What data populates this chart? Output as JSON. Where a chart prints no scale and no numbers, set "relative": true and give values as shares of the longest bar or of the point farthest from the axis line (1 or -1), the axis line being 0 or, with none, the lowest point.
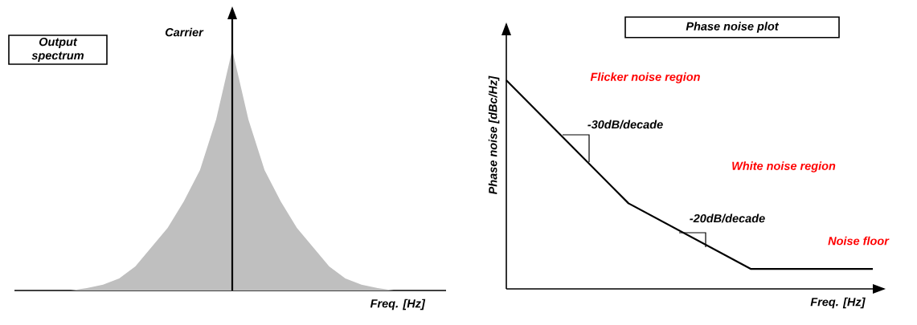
{
  "chart_data": [
    {
      "type": "area",
      "title": "Output spectrum",
      "xlabel": "Freq. [Hz]",
      "relative": true,
      "categories": [
        null,
        null,
        null,
        null,
        null,
        null,
        null,
        null,
        null,
        null,
        null,
        null,
        null,
        null,
        null,
        null,
        null,
        null,
        null,
        null,
        null
      ],
      "values": [
        0,
        0.01,
        0.024,
        0.05,
        0.1,
        0.18,
        0.26,
        0.37,
        0.5,
        0.71,
        1,
        0.71,
        0.5,
        0.37,
        0.26,
        0.18,
        0.1,
        0.05,
        0.024,
        0.01,
        0
      ],
      "color": "#bfbfbf",
      "annotations": [
        "Carrier"
      ]
    },
    {
      "type": "line",
      "title": "Phase noise plot",
      "xlabel": "Freq. [Hz]",
      "ylabel": "Phase noise [dBc/Hz]",
      "relative": true,
      "categories": [
        null,
        null,
        null,
        null
      ],
      "values": [
        1,
        0.41,
        0.096,
        0.096
      ],
      "color": "#000000",
      "annotations": [
        "-30dB/decade",
        "-20dB/decade",
        "Flicker noise region",
        "White noise region",
        "Noise floor"
      ]
    }
  ]
}
